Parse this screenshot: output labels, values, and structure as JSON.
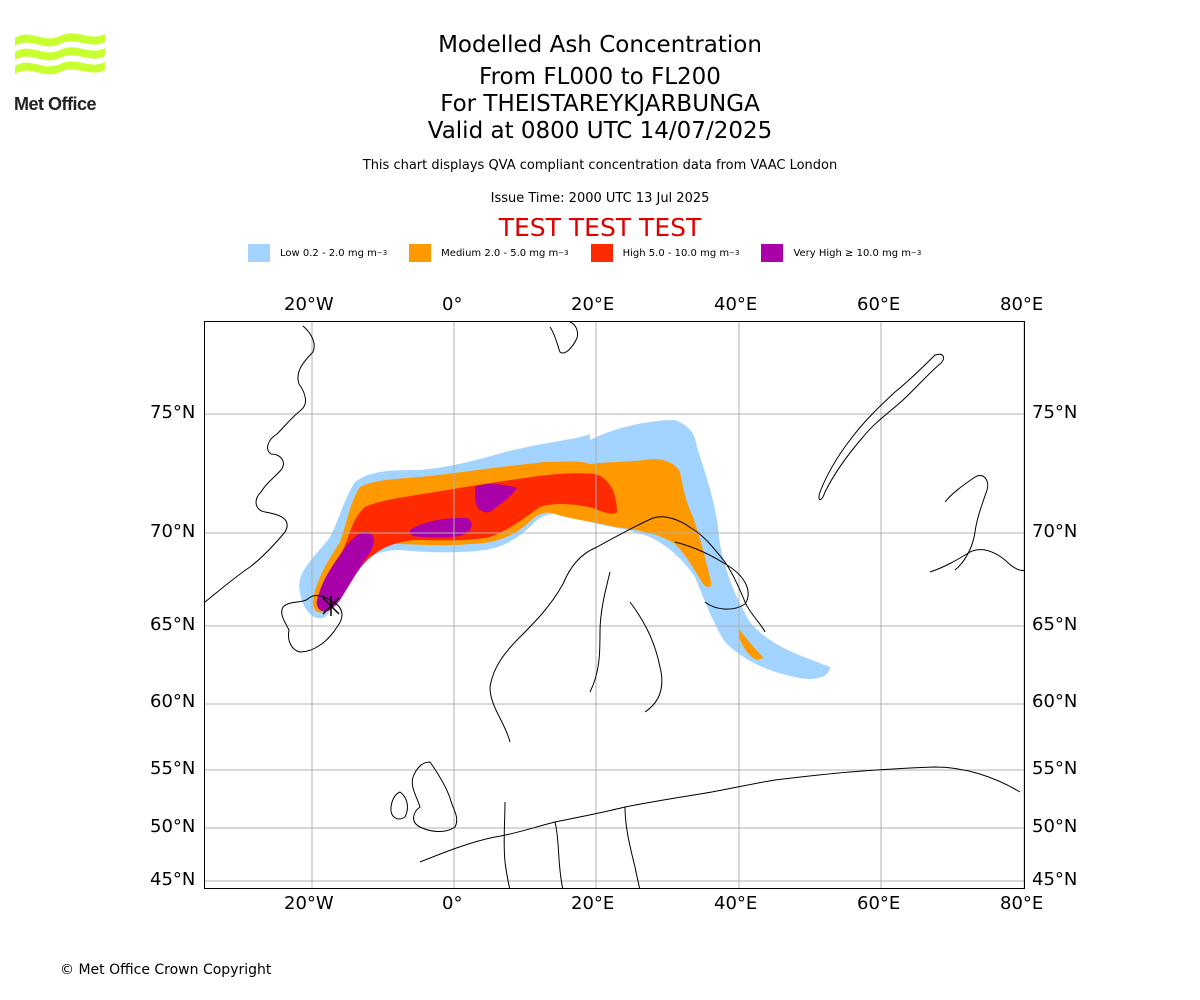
{
  "logo": {
    "text": "Met Office",
    "wave_color": "#c8ff2e"
  },
  "header": {
    "title": "Modelled Ash Concentration",
    "level_range": "From FL000 to FL200",
    "volcano": "For THEISTAREYKJARBUNGA",
    "valid_time": "Valid at 0800 UTC 14/07/2025",
    "description": "This chart displays QVA compliant concentration data from VAAC London",
    "issue_time": "Issue Time: 2000 UTC 13 Jul 2025",
    "test_banner": "TEST TEST TEST"
  },
  "legend": [
    {
      "label": "Low 0.2 - 2.0 mg m",
      "unit_exp": "−3",
      "color": "#a3d4ff"
    },
    {
      "label": "Medium 2.0 - 5.0 mg m",
      "unit_exp": "−3",
      "color": "#ff9900"
    },
    {
      "label": "High 5.0 - 10.0 mg m",
      "unit_exp": "−3",
      "color": "#ff2a00"
    },
    {
      "label": "Very High  ≥  10.0 mg m",
      "unit_exp": "−3",
      "color": "#aa00aa"
    }
  ],
  "map": {
    "lon_ticks": [
      "20°W",
      "0°",
      "20°E",
      "40°E",
      "60°E",
      "80°E"
    ],
    "lat_ticks": [
      "75°N",
      "70°N",
      "65°N",
      "60°N",
      "55°N",
      "50°N",
      "45°N"
    ],
    "gridlines": true,
    "icons": {
      "volcano": "volcano-marker-icon"
    }
  },
  "footer": {
    "copyright": "© Met Office Crown Copyright"
  }
}
